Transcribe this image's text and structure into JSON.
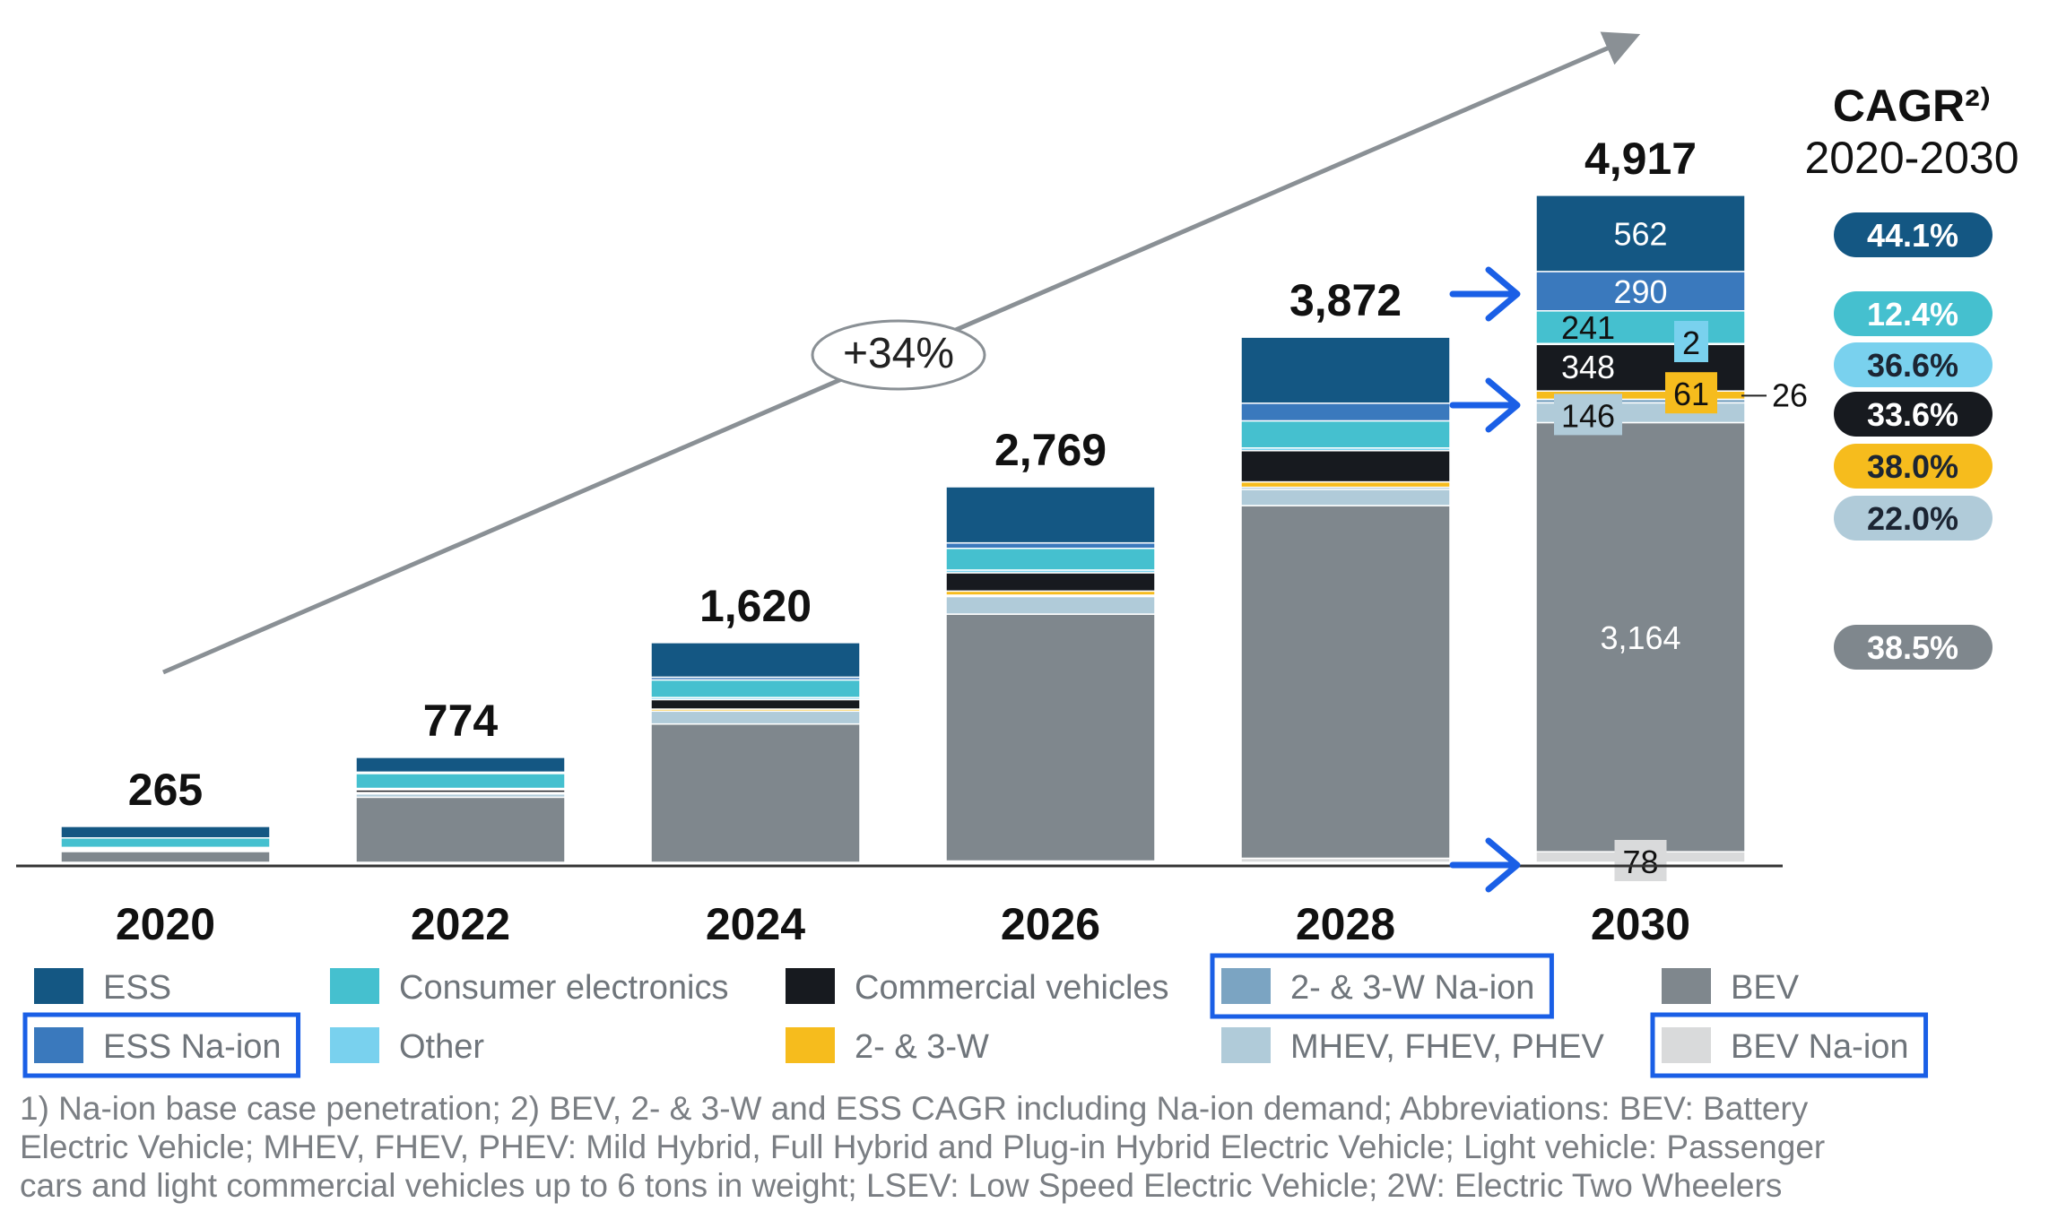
{
  "chart_data": {
    "type": "bar",
    "stacked": true,
    "categories": [
      "2020",
      "2022",
      "2024",
      "2026",
      "2028",
      "2030"
    ],
    "totals": [
      "265",
      "774",
      "1,620",
      "2,769",
      "3,872",
      "4,917"
    ],
    "total_values": [
      265,
      774,
      1620,
      2769,
      3872,
      4917
    ],
    "ylim": [
      0,
      4917
    ],
    "growth_label": "+34%",
    "cagr_title": "CAGR²⁾",
    "cagr_period": "2020-2030",
    "series": [
      {
        "key": "bev_na",
        "name": "BEV Na-ion",
        "color": "#d9dadb",
        "values": [
          0,
          0,
          0,
          10,
          30,
          78
        ]
      },
      {
        "key": "bev",
        "name": "BEV",
        "color": "#7f878d",
        "values": [
          80,
          480,
          1020,
          1820,
          2600,
          3164
        ]
      },
      {
        "key": "mhev",
        "name": "MHEV, FHEV, PHEV",
        "color": "#b0cbd9",
        "values": [
          10,
          25,
          95,
          130,
          120,
          146
        ]
      },
      {
        "key": "w23_na",
        "name": "2- & 3-W Na-ion",
        "color": "#7ba4c2",
        "values": [
          0,
          0,
          0,
          10,
          15,
          26
        ]
      },
      {
        "key": "w23",
        "name": "2- & 3-W",
        "color": "#f6bc1d",
        "values": [
          5,
          10,
          15,
          30,
          40,
          61
        ]
      },
      {
        "key": "commercial",
        "name": "Commercial vehicles",
        "color": "#171a1f",
        "values": [
          10,
          20,
          70,
          135,
          230,
          348
        ]
      },
      {
        "key": "other",
        "name": "Other",
        "color": "#79d1ee",
        "values": [
          5,
          10,
          15,
          20,
          20,
          2
        ]
      },
      {
        "key": "consumer",
        "name": "Consumer electronics",
        "color": "#45c0cf",
        "values": [
          70,
          110,
          130,
          160,
          200,
          241
        ]
      },
      {
        "key": "ess_na",
        "name": "ESS Na-ion",
        "color": "#3a79bd",
        "values": [
          0,
          10,
          20,
          40,
          130,
          290
        ]
      },
      {
        "key": "ess",
        "name": "ESS",
        "color": "#145783",
        "values": [
          85,
          109,
          255,
          414,
          487,
          562
        ]
      }
    ],
    "labels_2030": [
      {
        "key": "ess",
        "text": "562"
      },
      {
        "key": "ess_na",
        "text": "290"
      },
      {
        "key": "consumer",
        "text": "241"
      },
      {
        "key": "other",
        "text": "2"
      },
      {
        "key": "commercial",
        "text": "348"
      },
      {
        "key": "w23",
        "text": "61"
      },
      {
        "key": "w23_na",
        "text": "26"
      },
      {
        "key": "mhev",
        "text": "146"
      },
      {
        "key": "bev",
        "text": "3,164"
      },
      {
        "key": "bev_na",
        "text": "78"
      }
    ],
    "cagr": [
      {
        "value": "44.1%",
        "color": "#145783",
        "text_color": "#ffffff"
      },
      {
        "value": "12.4%",
        "color": "#45c0cf",
        "text_color": "#ffffff"
      },
      {
        "value": "36.6%",
        "color": "#79d1ee",
        "text_color": "#1c2533"
      },
      {
        "value": "33.6%",
        "color": "#171a1f",
        "text_color": "#ffffff"
      },
      {
        "value": "38.0%",
        "color": "#f6bc1d",
        "text_color": "#1c2533"
      },
      {
        "value": "22.0%",
        "color": "#b0cbd9",
        "text_color": "#1c2533"
      },
      {
        "value": "38.5%",
        "color": "#7f878d",
        "text_color": "#ffffff"
      }
    ],
    "legend": [
      {
        "key": "ess",
        "label": "ESS",
        "highlighted": false
      },
      {
        "key": "consumer",
        "label": "Consumer electronics",
        "highlighted": false
      },
      {
        "key": "commercial",
        "label": "Commercial vehicles",
        "highlighted": false
      },
      {
        "key": "w23_na",
        "label": "2- & 3-W Na-ion",
        "highlighted": true
      },
      {
        "key": "bev",
        "label": "BEV",
        "highlighted": false
      },
      {
        "key": "ess_na",
        "label": "ESS Na-ion",
        "highlighted": true
      },
      {
        "key": "other",
        "label": "Other",
        "highlighted": false
      },
      {
        "key": "w23",
        "label": "2- & 3-W",
        "highlighted": false
      },
      {
        "key": "mhev",
        "label": "MHEV, FHEV, PHEV",
        "highlighted": false
      },
      {
        "key": "bev_na",
        "label": "BEV Na-ion",
        "highlighted": true
      }
    ],
    "highlight_color": "#1a5fe6"
  },
  "footnote": {
    "line1": "1) Na-ion base case penetration; 2) BEV, 2- & 3-W and ESS CAGR including Na-ion demand; Abbreviations: BEV: Battery",
    "line2": "Electric Vehicle; MHEV, FHEV, PHEV: Mild Hybrid, Full Hybrid and Plug-in Hybrid Electric Vehicle; Light vehicle: Passenger",
    "line3": "cars and light commercial vehicles up to 6 tons in weight; LSEV: Low Speed Electric Vehicle; 2W: Electric Two Wheelers"
  }
}
